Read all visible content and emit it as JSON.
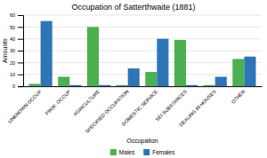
{
  "chart_data": {
    "type": "bar",
    "title": "Occupation of Satterthwaite (1881)",
    "xlabel": "Occupation",
    "ylabel": "Amounts",
    "categories": [
      "UNKNOWN OCCUP",
      "PROF. OCCUP",
      "AGRICULTURE",
      "SPECIFIED OCCUPATION",
      "DOMESTIC SERVICE",
      "SEI SUBSTANCES",
      "DEALING IN HOUSES",
      "OTHER"
    ],
    "series": [
      {
        "name": "Males",
        "color": "#4CAF50",
        "values": [
          2,
          8,
          50,
          1,
          12,
          39,
          1,
          23
        ]
      },
      {
        "name": "Females",
        "color": "#2E75B6",
        "values": [
          55,
          1,
          1,
          15,
          40,
          1,
          8,
          25
        ]
      }
    ],
    "ylim": [
      0,
      60
    ],
    "yticks": [
      0,
      10,
      20,
      30,
      40,
      50,
      60
    ],
    "grid": true,
    "legend": "bottom"
  }
}
